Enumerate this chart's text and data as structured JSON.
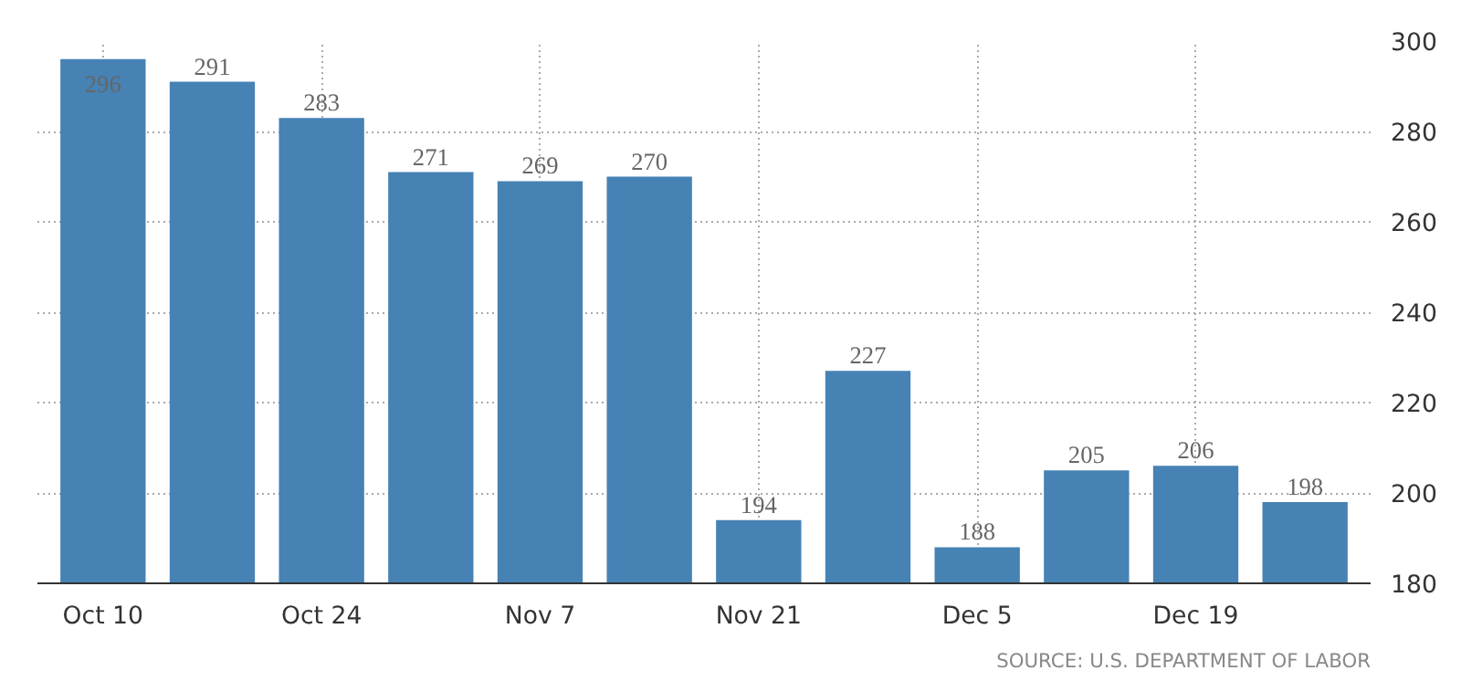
{
  "chart_data": {
    "type": "bar",
    "categories": [
      "Oct 10",
      null,
      "Oct 24",
      null,
      "Nov 7",
      null,
      "Nov 21",
      null,
      "Dec 5",
      null,
      "Dec 19",
      null
    ],
    "values": [
      296,
      291,
      283,
      271,
      269,
      270,
      194,
      227,
      188,
      205,
      206,
      198
    ],
    "color": "#4682b4",
    "ylim": [
      180,
      300
    ],
    "yticks": [
      180,
      200,
      220,
      240,
      260,
      280,
      300
    ],
    "grid": true,
    "data_labels": true,
    "annotations": [
      "SOURCE: U.S. DEPARTMENT OF LABOR"
    ]
  }
}
